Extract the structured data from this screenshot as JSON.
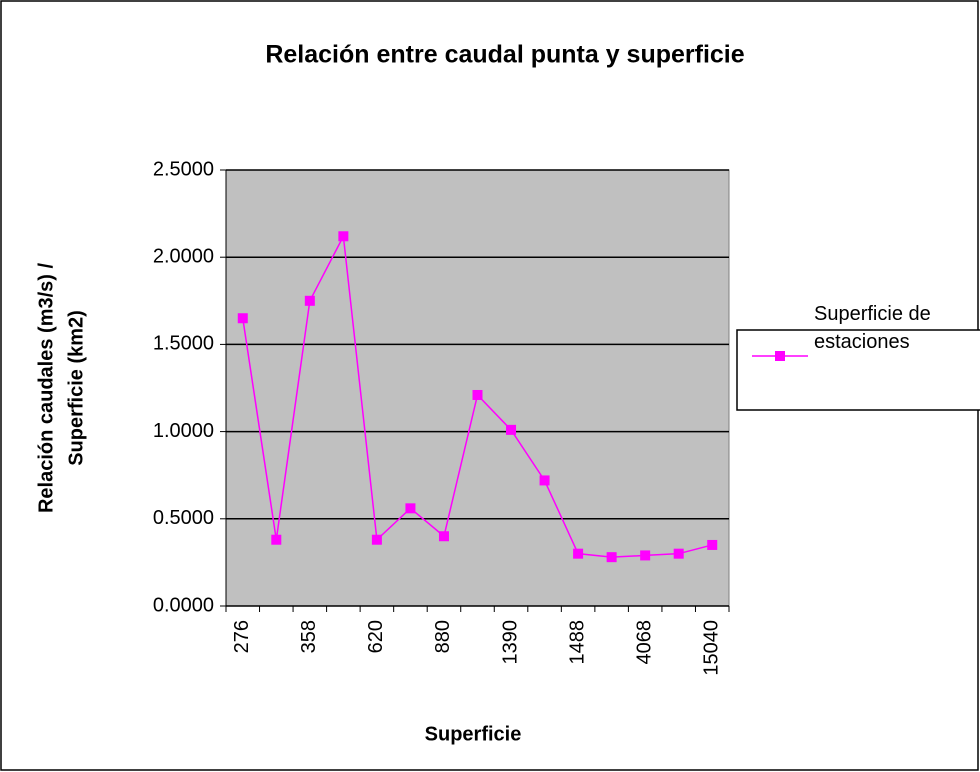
{
  "chart_data": {
    "type": "line",
    "title": "Relación entre caudal punta y superficie",
    "xlabel": "Superficie",
    "ylabel": [
      "Relación caudales (m3/s) /",
      "Superficie (km2)"
    ],
    "categories": [
      "276",
      null,
      "358",
      null,
      "620",
      null,
      "880",
      null,
      "1390",
      null,
      "1488",
      null,
      "4068",
      null,
      "15040"
    ],
    "series": [
      {
        "name": "Superficie de estaciones",
        "color": "#ff00ff",
        "values": [
          1.65,
          0.38,
          1.75,
          2.12,
          0.38,
          0.56,
          0.4,
          1.21,
          1.01,
          0.72,
          0.3,
          0.28,
          0.29,
          0.3,
          0.35
        ]
      }
    ],
    "ylim": [
      0,
      2.5
    ],
    "yticks": [
      {
        "value": 0,
        "label": "0.0000"
      },
      {
        "value": 0.5,
        "label": "0.5000"
      },
      {
        "value": 1,
        "label": "1.0000"
      },
      {
        "value": 1.5,
        "label": "1.5000"
      },
      {
        "value": 2,
        "label": "2.0000"
      },
      {
        "value": 2.5,
        "label": "2.5000"
      }
    ],
    "grid": true,
    "legend": "right",
    "plot_background": "#c0c0c0"
  }
}
